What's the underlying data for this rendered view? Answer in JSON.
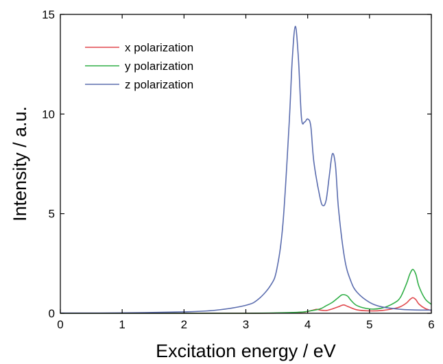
{
  "chart_data": {
    "type": "line",
    "title": "",
    "xlabel": "Excitation energy / eV",
    "ylabel": "Intensity / a.u.",
    "xlim": [
      0,
      6
    ],
    "ylim": [
      0,
      15
    ],
    "xticks": [
      0,
      1,
      2,
      3,
      4,
      5,
      6
    ],
    "yticks": [
      0,
      5,
      10,
      15
    ],
    "xtick_labels": [
      "0",
      "1",
      "2",
      "3",
      "4",
      "5",
      "6"
    ],
    "ytick_labels": [
      "0",
      "5",
      "10",
      "15"
    ],
    "grid": false,
    "legend_position": "top-left",
    "series": [
      {
        "name": "x polarization",
        "color": "#e0474c",
        "x": [
          0,
          1,
          2,
          3,
          3.5,
          3.9,
          4.0,
          4.1,
          4.15,
          4.2,
          4.3,
          4.4,
          4.5,
          4.58,
          4.65,
          4.8,
          5.0,
          5.2,
          5.4,
          5.5,
          5.6,
          5.65,
          5.7,
          5.75,
          5.8,
          5.9,
          6.0
        ],
        "y": [
          0,
          0,
          0,
          0,
          0.01,
          0.05,
          0.09,
          0.17,
          0.2,
          0.16,
          0.14,
          0.22,
          0.33,
          0.42,
          0.34,
          0.17,
          0.12,
          0.14,
          0.24,
          0.33,
          0.52,
          0.68,
          0.78,
          0.68,
          0.46,
          0.24,
          0.14
        ]
      },
      {
        "name": "y polarization",
        "color": "#2fae46",
        "x": [
          0,
          1,
          2,
          3,
          3.5,
          3.9,
          4.0,
          4.2,
          4.3,
          4.4,
          4.5,
          4.55,
          4.6,
          4.65,
          4.7,
          4.8,
          5.0,
          5.2,
          5.4,
          5.5,
          5.6,
          5.65,
          5.7,
          5.75,
          5.8,
          5.9,
          6.0
        ],
        "y": [
          0,
          0,
          0,
          0,
          0.02,
          0.06,
          0.1,
          0.22,
          0.38,
          0.55,
          0.8,
          0.92,
          0.93,
          0.85,
          0.65,
          0.38,
          0.22,
          0.26,
          0.52,
          0.8,
          1.5,
          1.95,
          2.2,
          1.95,
          1.35,
          0.72,
          0.45
        ]
      },
      {
        "name": "z polarization",
        "color": "#5a6cae",
        "x": [
          0,
          1,
          2,
          2.5,
          3.0,
          3.2,
          3.4,
          3.5,
          3.6,
          3.7,
          3.75,
          3.8,
          3.85,
          3.9,
          3.95,
          4.0,
          4.05,
          4.1,
          4.2,
          4.25,
          4.3,
          4.35,
          4.4,
          4.45,
          4.5,
          4.6,
          4.7,
          4.8,
          5.0,
          5.2,
          5.5,
          5.7,
          5.9,
          6.0
        ],
        "y": [
          0.01,
          0.02,
          0.07,
          0.15,
          0.4,
          0.7,
          1.4,
          2.2,
          4.5,
          9.5,
          12.7,
          14.4,
          12.8,
          9.8,
          9.6,
          9.75,
          9.4,
          7.6,
          5.8,
          5.4,
          5.7,
          6.9,
          8.0,
          7.4,
          5.2,
          2.7,
          1.6,
          1.05,
          0.55,
          0.32,
          0.2,
          0.17,
          0.16,
          0.16
        ]
      }
    ]
  }
}
